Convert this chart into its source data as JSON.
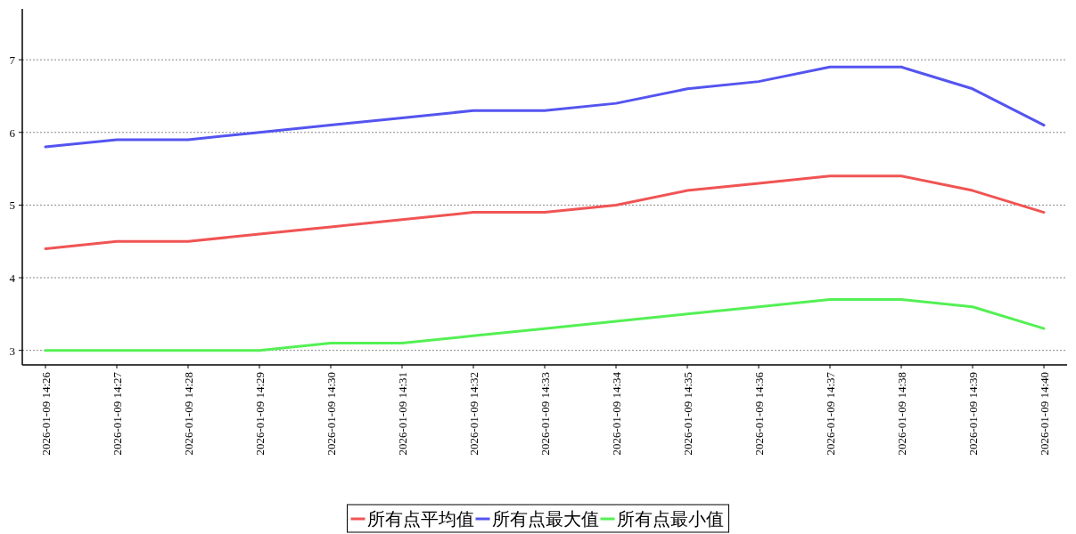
{
  "chart_data": {
    "type": "line",
    "categories": [
      "2026-01-09 14:26",
      "2026-01-09 14:27",
      "2026-01-09 14:28",
      "2026-01-09 14:29",
      "2026-01-09 14:30",
      "2026-01-09 14:31",
      "2026-01-09 14:32",
      "2026-01-09 14:33",
      "2026-01-09 14:34",
      "2026-01-09 14:35",
      "2026-01-09 14:36",
      "2026-01-09 14:37",
      "2026-01-09 14:38",
      "2026-01-09 14:39",
      "2026-01-09 14:40"
    ],
    "series": [
      {
        "name": "所有点平均值",
        "color": "#f05454",
        "values": [
          4.4,
          4.5,
          4.5,
          4.6,
          4.7,
          4.8,
          4.9,
          4.9,
          5.0,
          5.2,
          5.3,
          5.4,
          5.4,
          5.2,
          4.9
        ]
      },
      {
        "name": "所有点最大值",
        "color": "#5454f0",
        "values": [
          5.8,
          5.9,
          5.9,
          6.0,
          6.1,
          6.2,
          6.3,
          6.3,
          6.4,
          6.6,
          6.7,
          6.9,
          6.9,
          6.6,
          6.1
        ]
      },
      {
        "name": "所有点最小值",
        "color": "#54f054",
        "values": [
          3.0,
          3.0,
          3.0,
          3.0,
          3.1,
          3.1,
          3.2,
          3.3,
          3.4,
          3.5,
          3.6,
          3.7,
          3.7,
          3.6,
          3.3
        ]
      }
    ],
    "ylim": [
      2.8,
      7.7
    ],
    "yticks": [
      3,
      4,
      5,
      6,
      7
    ],
    "grid": "y",
    "legend": "bottom"
  }
}
